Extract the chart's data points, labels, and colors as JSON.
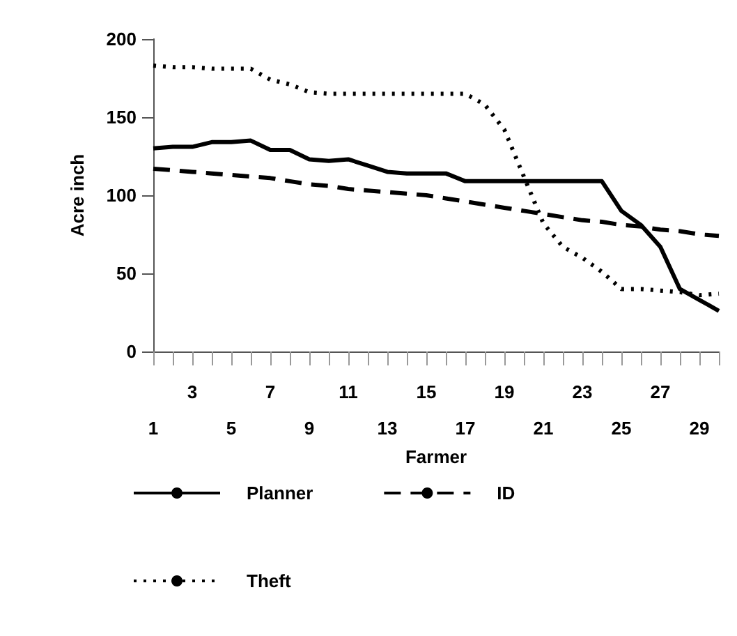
{
  "chart_data": {
    "type": "line",
    "xlabel": "Farmer",
    "ylabel": "Acre inch",
    "categories": [
      "1",
      null,
      "3",
      null,
      "5",
      null,
      "7",
      null,
      "9",
      null,
      "11",
      null,
      "13",
      null,
      "15",
      null,
      "17",
      null,
      "19",
      null,
      "21",
      null,
      "23",
      null,
      "25",
      null,
      "27",
      null,
      "29",
      null
    ],
    "series": [
      {
        "name": "Planner",
        "color": "#000000",
        "line_style": "solid",
        "values": [
          130,
          131,
          131,
          134,
          134,
          135,
          129,
          129,
          123,
          122,
          123,
          119,
          115,
          114,
          114,
          114,
          109,
          109,
          109,
          109,
          109,
          109,
          109,
          109,
          90,
          81,
          67,
          40,
          33,
          26
        ]
      },
      {
        "name": "ID",
        "color": "#000000",
        "line_style": "dashed",
        "values": [
          117,
          116,
          115,
          114,
          113,
          112,
          111,
          109,
          107,
          106,
          104,
          103,
          102,
          101,
          100,
          98,
          96,
          94,
          92,
          90,
          88,
          86,
          84,
          83,
          81,
          80,
          78,
          77,
          75,
          74
        ]
      },
      {
        "name": "Theft",
        "color": "#000000",
        "line_style": "dotted",
        "values": [
          183,
          182,
          182,
          181,
          181,
          181,
          174,
          171,
          166,
          165,
          165,
          165,
          165,
          165,
          165,
          165,
          165,
          158,
          142,
          112,
          82,
          67,
          60,
          51,
          40,
          40,
          39,
          38,
          36,
          37
        ]
      }
    ],
    "ylim": [
      0,
      200
    ],
    "yticks": [
      0,
      50,
      100,
      150,
      200
    ],
    "grid": false,
    "legend": "bottom",
    "marker": "none"
  }
}
